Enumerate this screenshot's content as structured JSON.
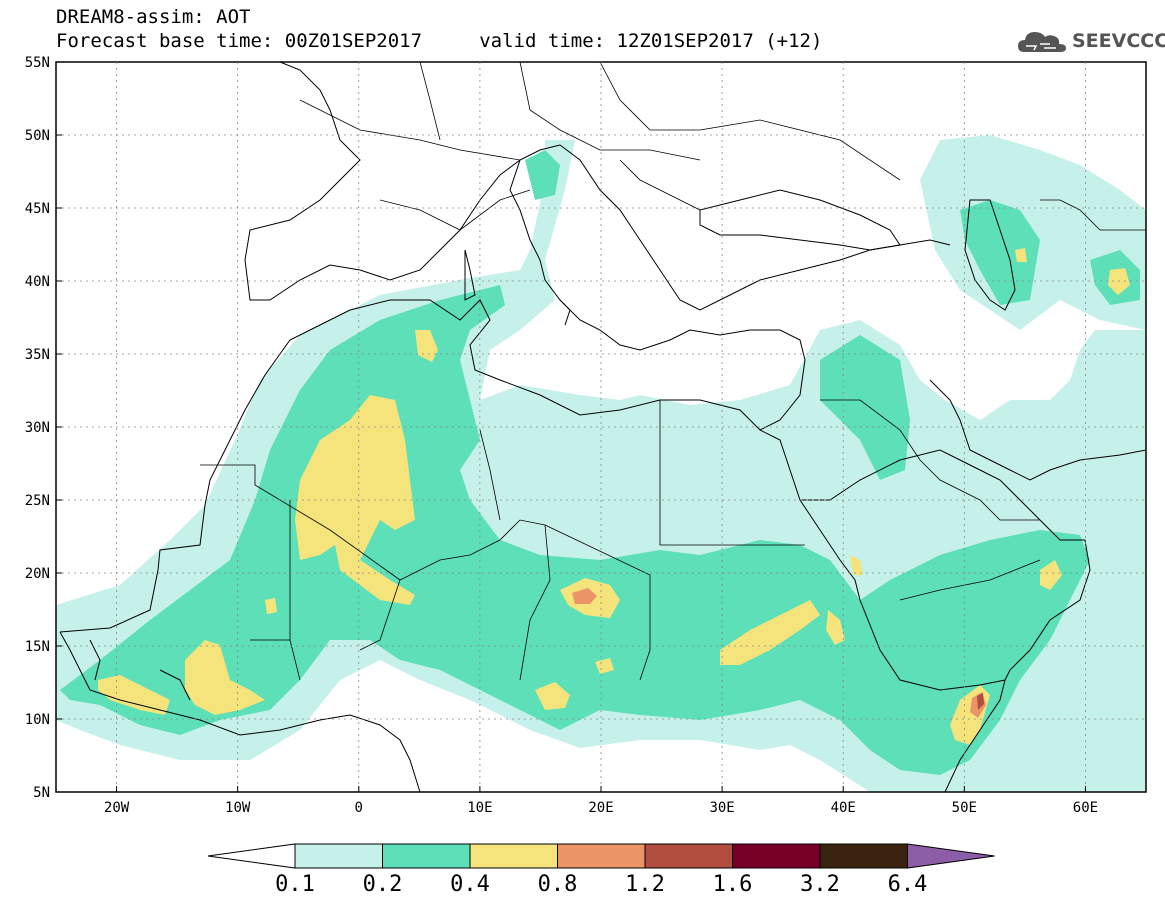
{
  "title": {
    "line1": "DREAM8-assim: AOT",
    "line2": "Forecast base time: 00Z01SEP2017     valid time: 12Z01SEP2017 (+12)"
  },
  "logo": {
    "text": "SEEVCCC"
  },
  "map": {
    "lon_range": [
      -25,
      65
    ],
    "lat_range": [
      5,
      55
    ],
    "lat_ticks": [
      "55N",
      "50N",
      "45N",
      "40N",
      "35N",
      "30N",
      "25N",
      "20N",
      "15N",
      "10N",
      "5N"
    ],
    "lon_ticks": [
      "20W",
      "10W",
      "0",
      "10E",
      "20E",
      "30E",
      "40E",
      "50E",
      "60E"
    ]
  },
  "colorbar": {
    "labels": [
      "0.1",
      "0.2",
      "0.4",
      "0.8",
      "1.2",
      "1.6",
      "3.2",
      "6.4"
    ],
    "colors": [
      "#ffffff",
      "#c6f1ea",
      "#5ddfb8",
      "#f5e47c",
      "#eb9468",
      "#b24e3f",
      "#780026",
      "#3a2311",
      "#8c5ea8"
    ]
  }
}
